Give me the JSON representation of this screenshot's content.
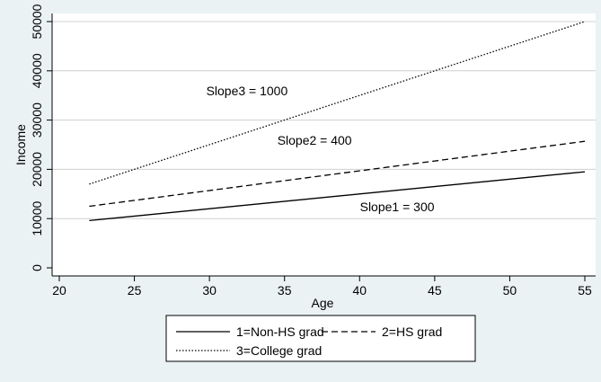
{
  "chart_data": {
    "type": "line",
    "title": "",
    "xlabel": "Age",
    "ylabel": "Income",
    "xlim": [
      20,
      55
    ],
    "ylim": [
      0,
      50000
    ],
    "x_ticks": [
      20,
      25,
      30,
      35,
      40,
      45,
      50,
      55
    ],
    "y_ticks": [
      0,
      10000,
      20000,
      30000,
      40000,
      50000
    ],
    "grid": true,
    "legend_position": "bottom",
    "series": [
      {
        "name": "1=Non-HS grad",
        "style": "solid",
        "x": [
          22,
          55
        ],
        "y": [
          9600,
          19500
        ]
      },
      {
        "name": "2=HS grad",
        "style": "dashed",
        "x": [
          22,
          55
        ],
        "y": [
          12500,
          25700
        ]
      },
      {
        "name": "3=College grad",
        "style": "dotted",
        "x": [
          22,
          55
        ],
        "y": [
          17000,
          50000
        ]
      }
    ],
    "annotations": [
      {
        "text": "Slope3 = 1000",
        "x": 32.5,
        "y": 35000
      },
      {
        "text": "Slope2 = 400",
        "x": 37,
        "y": 25000
      },
      {
        "text": "Slope1 = 300",
        "x": 42.5,
        "y": 11500
      }
    ],
    "colors": {
      "background": "#eaf2f3",
      "plot_background": "#ffffff",
      "line": "#000000",
      "grid": "#d0d0d0"
    }
  }
}
